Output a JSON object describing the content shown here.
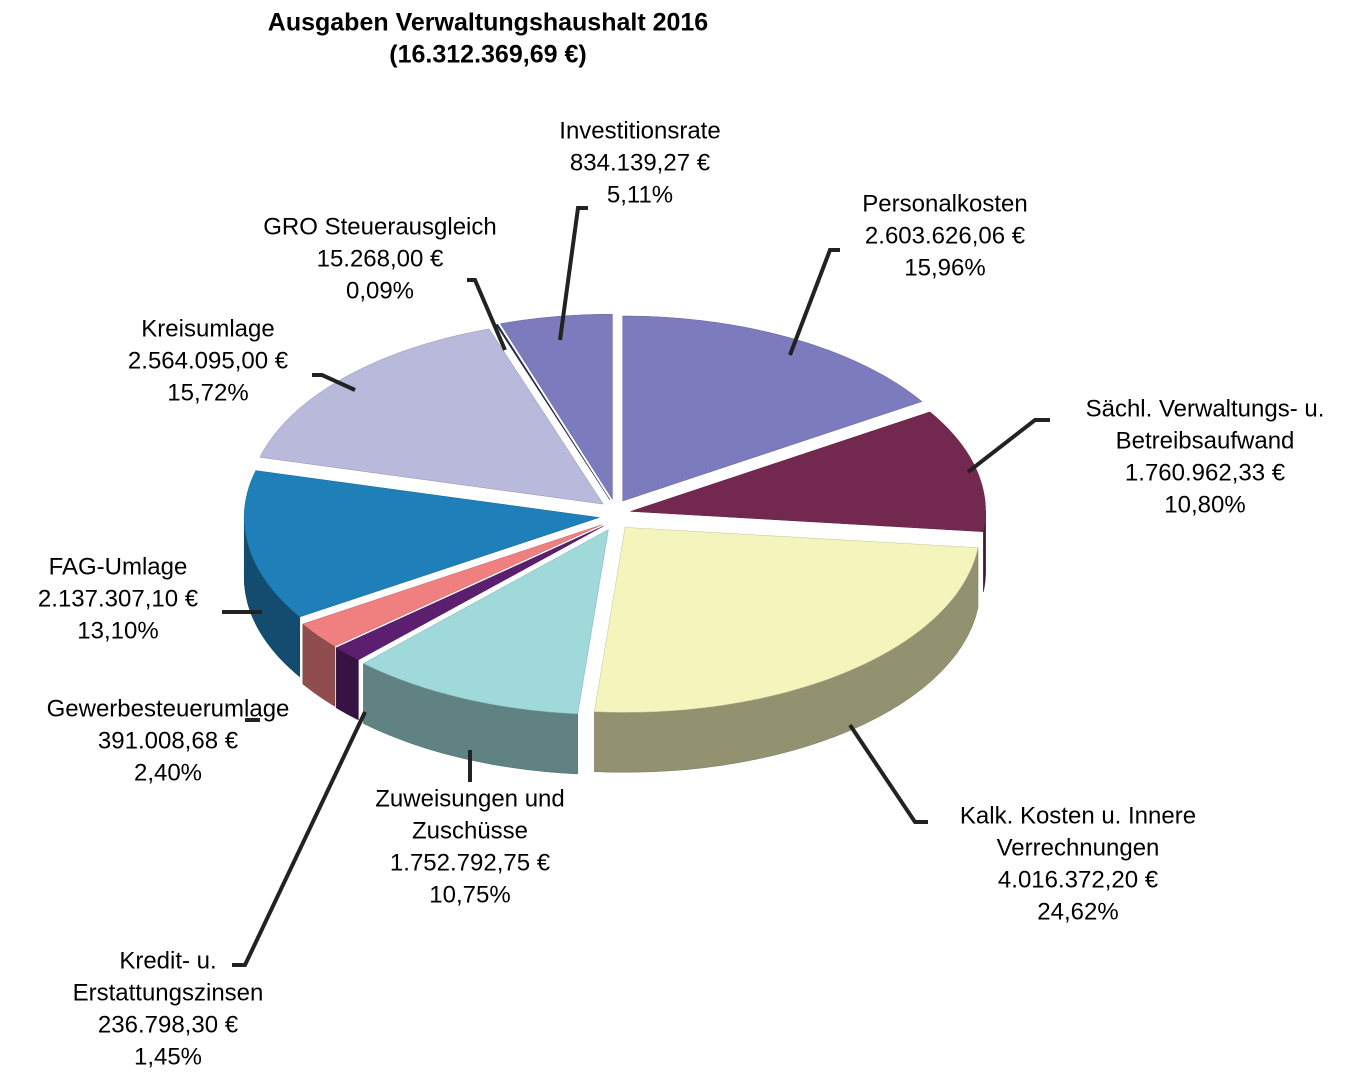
{
  "chart_data": {
    "type": "pie3d",
    "title": "Ausgaben Verwaltungshaushalt 2016",
    "subtitle": "(16.312.369,69 €)",
    "categories": [
      [
        "Personalkosten"
      ],
      [
        "Sächl. Verwaltungs- u.",
        "Betreibsaufwand"
      ],
      [
        "Kalk. Kosten u. Innere",
        "Verrechnungen"
      ],
      [
        "Zuweisungen und",
        "Zuschüsse"
      ],
      [
        "Kredit- u.",
        "Erstattungszinsen"
      ],
      [
        "Gewerbesteuerumlage"
      ],
      [
        "FAG-Umlage"
      ],
      [
        "Kreisumlage"
      ],
      [
        "GRO Steuerausgleich"
      ],
      [
        "Investitionsrate"
      ]
    ],
    "values": [
      2603626.06,
      1760962.33,
      4016372.2,
      1752792.75,
      236798.3,
      391008.68,
      2137307.1,
      2564095.0,
      15268.0,
      834139.27
    ],
    "value_labels": [
      "2.603.626,06 €",
      "1.760.962,33 €",
      "4.016.372,20 €",
      "1.752.792,75 €",
      "236.798,30 €",
      "391.008,68 €",
      "2.137.307,10 €",
      "2.564.095,00 €",
      "15.268,00 €",
      "834.139,27 €"
    ],
    "percentages": [
      15.96,
      10.8,
      24.62,
      10.75,
      1.45,
      2.4,
      13.1,
      15.72,
      0.09,
      5.11
    ],
    "percentage_labels": [
      "15,96%",
      "10,80%",
      "24,62%",
      "10,75%",
      "1,45%",
      "2,40%",
      "13,10%",
      "15,72%",
      "0,09%",
      "5,11%"
    ],
    "colors": [
      "#7b7bbd",
      "#73284f",
      "#f4f4bd",
      "#a0d9da",
      "#5c1f70",
      "#f08080",
      "#1f7fb8",
      "#b9b9dc",
      "#2b2b52",
      "#7b7bbd"
    ]
  }
}
